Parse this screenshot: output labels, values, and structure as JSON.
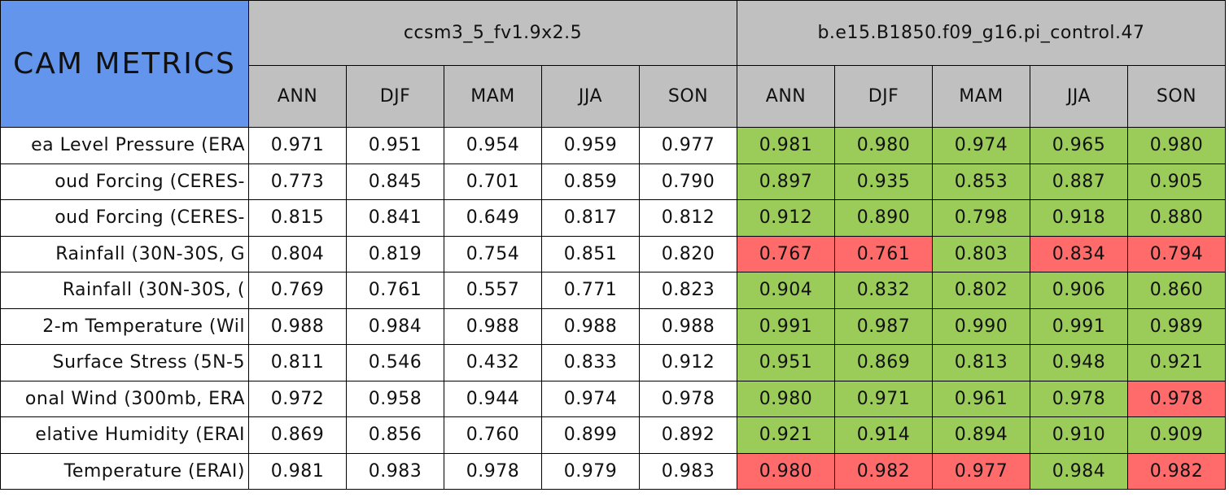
{
  "header": {
    "title": "CAM METRICS",
    "groups": [
      "ccsm3_5_fv1.9x2.5",
      "b.e15.B1850.f09_g16.pi_control.47"
    ],
    "columns": [
      "ANN",
      "DJF",
      "MAM",
      "JJA",
      "SON",
      "ANN",
      "DJF",
      "MAM",
      "JJA",
      "SON"
    ]
  },
  "colors": {
    "title": "#6495ed",
    "header": "#c0c0c0",
    "plain": "#ffffff",
    "good": "#9bcb58",
    "bad": "#ff6b6b"
  },
  "table": {
    "rows": [
      {
        "label": "ea Level Pressure (ERA",
        "values": [
          "0.971",
          "0.951",
          "0.954",
          "0.959",
          "0.977",
          "0.981",
          "0.980",
          "0.974",
          "0.965",
          "0.980"
        ],
        "shade": [
          "plain",
          "plain",
          "plain",
          "plain",
          "plain",
          "good",
          "good",
          "good",
          "good",
          "good"
        ]
      },
      {
        "label": "oud Forcing (CERES-",
        "values": [
          "0.773",
          "0.845",
          "0.701",
          "0.859",
          "0.790",
          "0.897",
          "0.935",
          "0.853",
          "0.887",
          "0.905"
        ],
        "shade": [
          "plain",
          "plain",
          "plain",
          "plain",
          "plain",
          "good",
          "good",
          "good",
          "good",
          "good"
        ]
      },
      {
        "label": "oud Forcing (CERES-",
        "values": [
          "0.815",
          "0.841",
          "0.649",
          "0.817",
          "0.812",
          "0.912",
          "0.890",
          "0.798",
          "0.918",
          "0.880"
        ],
        "shade": [
          "plain",
          "plain",
          "plain",
          "plain",
          "plain",
          "good",
          "good",
          "good",
          "good",
          "good"
        ]
      },
      {
        "label": "Rainfall (30N-30S, G",
        "values": [
          "0.804",
          "0.819",
          "0.754",
          "0.851",
          "0.820",
          "0.767",
          "0.761",
          "0.803",
          "0.834",
          "0.794"
        ],
        "shade": [
          "plain",
          "plain",
          "plain",
          "plain",
          "plain",
          "bad",
          "bad",
          "good",
          "bad",
          "bad"
        ]
      },
      {
        "label": "Rainfall (30N-30S, (",
        "values": [
          "0.769",
          "0.761",
          "0.557",
          "0.771",
          "0.823",
          "0.904",
          "0.832",
          "0.802",
          "0.906",
          "0.860"
        ],
        "shade": [
          "plain",
          "plain",
          "plain",
          "plain",
          "plain",
          "good",
          "good",
          "good",
          "good",
          "good"
        ]
      },
      {
        "label": "2-m Temperature (Wil",
        "values": [
          "0.988",
          "0.984",
          "0.988",
          "0.988",
          "0.988",
          "0.991",
          "0.987",
          "0.990",
          "0.991",
          "0.989"
        ],
        "shade": [
          "plain",
          "plain",
          "plain",
          "plain",
          "plain",
          "good",
          "good",
          "good",
          "good",
          "good"
        ]
      },
      {
        "label": "Surface Stress (5N-5",
        "values": [
          "0.811",
          "0.546",
          "0.432",
          "0.833",
          "0.912",
          "0.951",
          "0.869",
          "0.813",
          "0.948",
          "0.921"
        ],
        "shade": [
          "plain",
          "plain",
          "plain",
          "plain",
          "plain",
          "good",
          "good",
          "good",
          "good",
          "good"
        ]
      },
      {
        "label": "onal Wind (300mb, ERA",
        "values": [
          "0.972",
          "0.958",
          "0.944",
          "0.974",
          "0.978",
          "0.980",
          "0.971",
          "0.961",
          "0.978",
          "0.978"
        ],
        "shade": [
          "plain",
          "plain",
          "plain",
          "plain",
          "plain",
          "good",
          "good",
          "good",
          "good",
          "bad"
        ]
      },
      {
        "label": "elative Humidity (ERAI",
        "values": [
          "0.869",
          "0.856",
          "0.760",
          "0.899",
          "0.892",
          "0.921",
          "0.914",
          "0.894",
          "0.910",
          "0.909"
        ],
        "shade": [
          "plain",
          "plain",
          "plain",
          "plain",
          "plain",
          "good",
          "good",
          "good",
          "good",
          "good"
        ]
      },
      {
        "label": "Temperature (ERAI)",
        "values": [
          "0.981",
          "0.983",
          "0.978",
          "0.979",
          "0.983",
          "0.980",
          "0.982",
          "0.977",
          "0.984",
          "0.982"
        ],
        "shade": [
          "plain",
          "plain",
          "plain",
          "plain",
          "plain",
          "bad",
          "bad",
          "bad",
          "good",
          "bad"
        ]
      }
    ]
  }
}
